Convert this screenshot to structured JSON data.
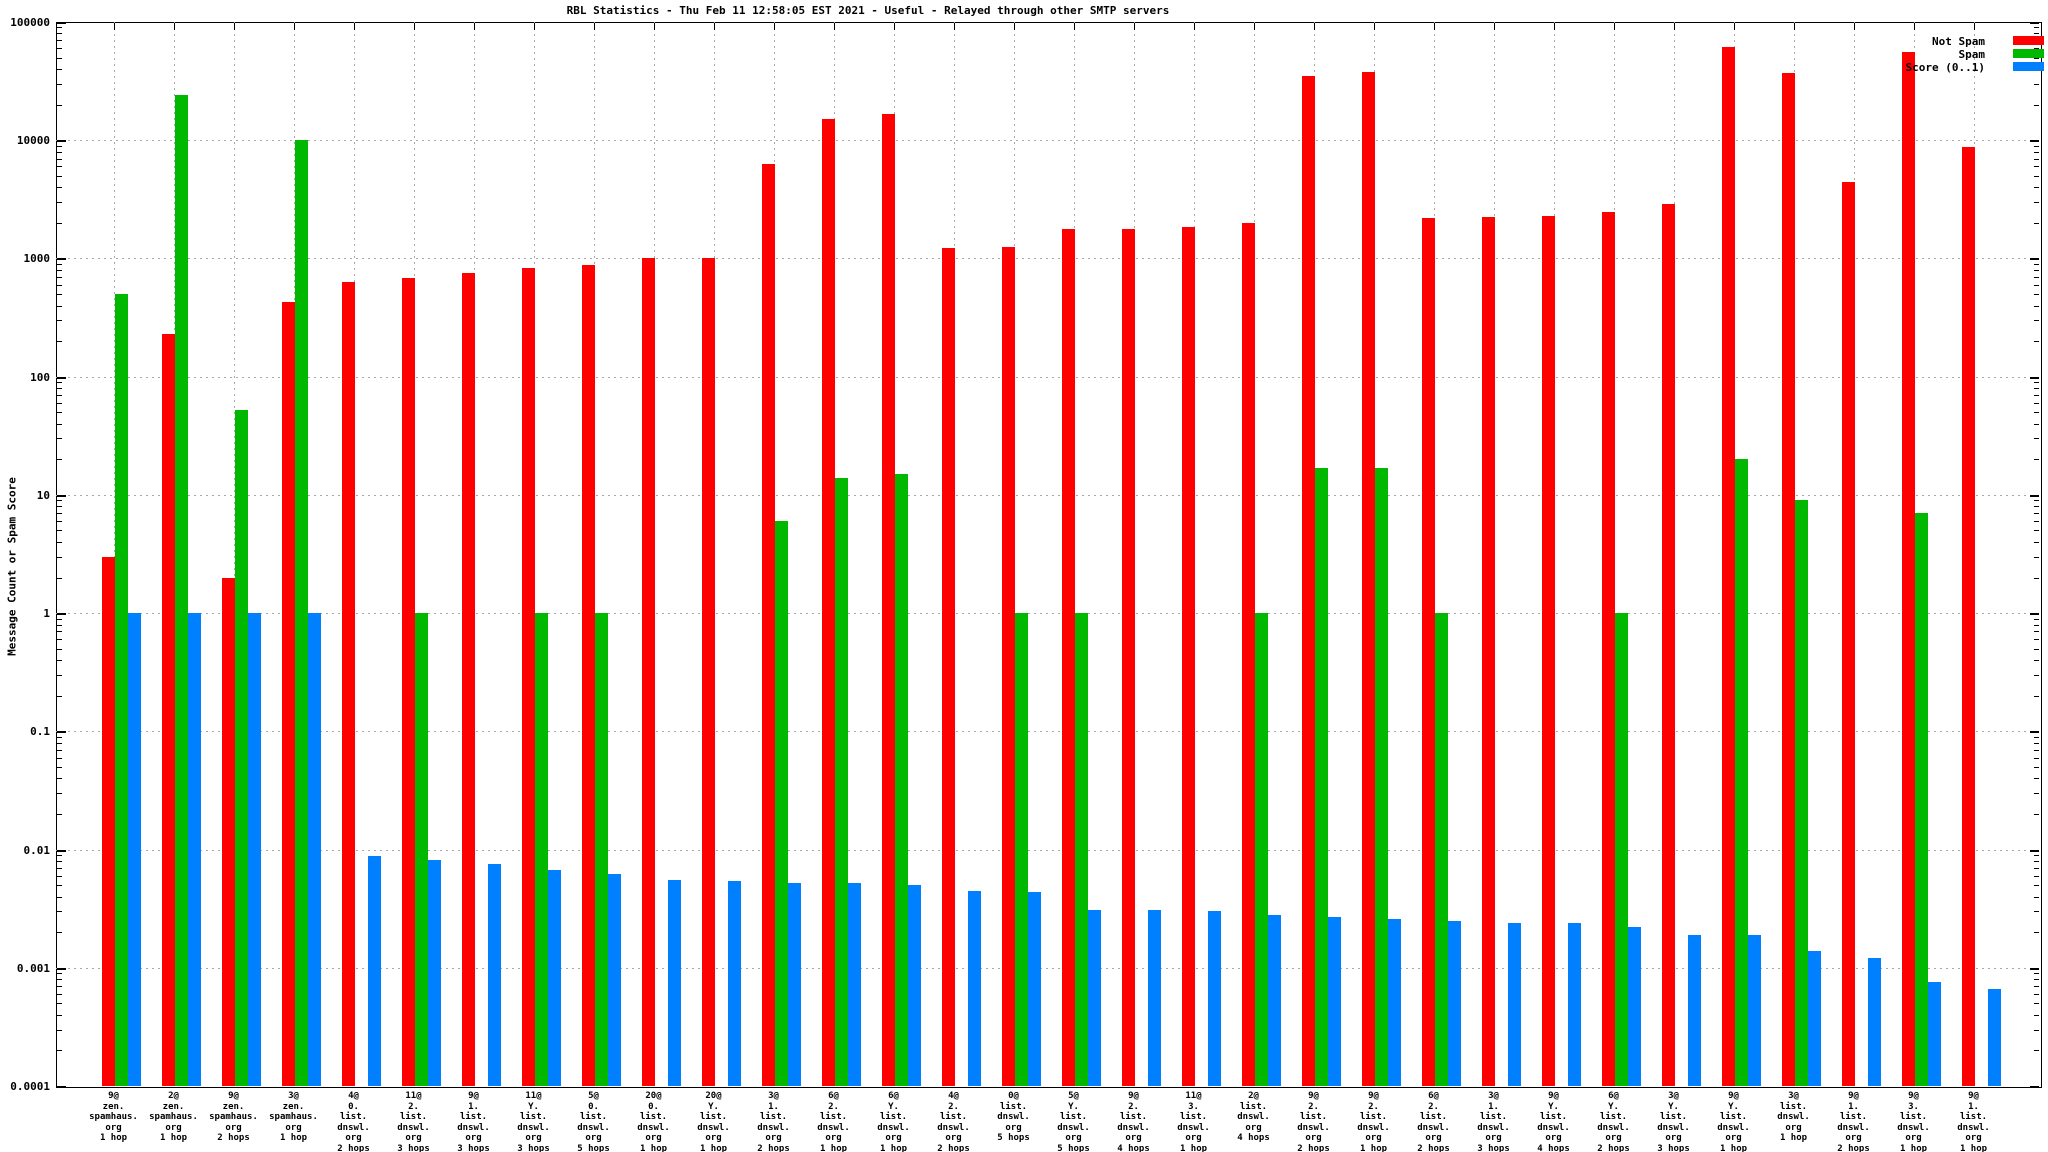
{
  "chart_data": {
    "type": "bar",
    "title": "RBL Statistics - Thu Feb 11 12:58:05 EST 2021 - Useful - Relayed through other SMTP servers",
    "ylabel": "Message Count or Spam Score",
    "y_scale": "log",
    "ylim": [
      0.0001,
      100000
    ],
    "ytick_labels": [
      "100000",
      "10000",
      "1000",
      "100",
      "10",
      "1",
      "0.1",
      "0.01",
      "0.001",
      "0.0001"
    ],
    "grid": true,
    "legend_position": "top-right-inside",
    "legend": [
      {
        "label": "Not Spam",
        "color": "#ff0000"
      },
      {
        "label": "Spam",
        "color": "#00b800"
      },
      {
        "label": "Score (0..1)",
        "color": "#0080ff"
      }
    ],
    "series": [
      {
        "name": "Not Spam",
        "values": [
          3,
          230,
          2,
          430,
          630,
          690,
          750,
          830,
          880,
          1000,
          1010,
          6300,
          15000,
          16700,
          1220,
          1260,
          1780,
          1790,
          1840,
          1990,
          35000,
          38000,
          2200,
          2250,
          2300,
          2450,
          2900,
          62000,
          37000,
          4400,
          56000,
          8700
        ]
      },
      {
        "name": "Spam",
        "values": [
          500,
          24000,
          52,
          10000,
          null,
          1,
          null,
          1,
          1,
          null,
          null,
          6,
          14,
          15,
          null,
          1,
          1,
          null,
          null,
          1,
          17,
          17,
          1,
          null,
          null,
          1,
          null,
          20,
          9,
          null,
          7,
          null
        ]
      },
      {
        "name": "Score (0..1)",
        "values": [
          1.0,
          1.0,
          1.0,
          1.0,
          0.0088,
          0.0081,
          0.0076,
          0.0067,
          0.0062,
          0.0055,
          0.0054,
          0.0052,
          0.0052,
          0.005,
          0.0045,
          0.0044,
          0.0031,
          0.0031,
          0.003,
          0.0028,
          0.0027,
          0.0026,
          0.0025,
          0.0024,
          0.0024,
          0.0022,
          0.0019,
          0.0019,
          0.0014,
          0.0012,
          0.00076,
          0.00066
        ]
      }
    ],
    "categories": [
      [
        "9@",
        "zen.",
        "spamhaus.",
        "org",
        "1 hop"
      ],
      [
        "2@",
        "zen.",
        "spamhaus.",
        "org",
        "1 hop"
      ],
      [
        "9@",
        "zen.",
        "spamhaus.",
        "org",
        "2 hops"
      ],
      [
        "3@",
        "zen.",
        "spamhaus.",
        "org",
        "1 hop"
      ],
      [
        "4@",
        "0.",
        "list.",
        "dnswl.",
        "org",
        "2 hops"
      ],
      [
        "11@",
        "2.",
        "list.",
        "dnswl.",
        "org",
        "3 hops"
      ],
      [
        "9@",
        "1.",
        "list.",
        "dnswl.",
        "org",
        "3 hops"
      ],
      [
        "11@",
        "Y.",
        "list.",
        "dnswl.",
        "org",
        "3 hops"
      ],
      [
        "5@",
        "0.",
        "list.",
        "dnswl.",
        "org",
        "5 hops"
      ],
      [
        "20@",
        "0.",
        "list.",
        "dnswl.",
        "org",
        "1 hop"
      ],
      [
        "20@",
        "Y.",
        "list.",
        "dnswl.",
        "org",
        "1 hop"
      ],
      [
        "3@",
        "1.",
        "list.",
        "dnswl.",
        "org",
        "2 hops"
      ],
      [
        "6@",
        "2.",
        "list.",
        "dnswl.",
        "org",
        "1 hop"
      ],
      [
        "6@",
        "Y.",
        "list.",
        "dnswl.",
        "org",
        "1 hop"
      ],
      [
        "4@",
        "2.",
        "list.",
        "dnswl.",
        "org",
        "2 hops"
      ],
      [
        "0@",
        "list.",
        "dnswl.",
        "org",
        "5 hops"
      ],
      [
        "5@",
        "Y.",
        "list.",
        "dnswl.",
        "org",
        "5 hops"
      ],
      [
        "9@",
        "2.",
        "list.",
        "dnswl.",
        "org",
        "4 hops"
      ],
      [
        "11@",
        "3.",
        "list.",
        "dnswl.",
        "org",
        "1 hop"
      ],
      [
        "2@",
        "list.",
        "dnswl.",
        "org",
        "4 hops"
      ],
      [
        "9@",
        "2.",
        "list.",
        "dnswl.",
        "org",
        "2 hops"
      ],
      [
        "9@",
        "2.",
        "list.",
        "dnswl.",
        "org",
        "1 hop"
      ],
      [
        "6@",
        "2.",
        "list.",
        "dnswl.",
        "org",
        "2 hops"
      ],
      [
        "3@",
        "1.",
        "list.",
        "dnswl.",
        "org",
        "3 hops"
      ],
      [
        "9@",
        "Y.",
        "list.",
        "dnswl.",
        "org",
        "4 hops"
      ],
      [
        "6@",
        "Y.",
        "list.",
        "dnswl.",
        "org",
        "2 hops"
      ],
      [
        "3@",
        "Y.",
        "list.",
        "dnswl.",
        "org",
        "3 hops"
      ],
      [
        "9@",
        "Y.",
        "list.",
        "dnswl.",
        "org",
        "1 hop"
      ],
      [
        "3@",
        "list.",
        "dnswl.",
        "org",
        "1 hop"
      ],
      [
        "9@",
        "1.",
        "list.",
        "dnswl.",
        "org",
        "2 hops"
      ],
      [
        "9@",
        "3.",
        "list.",
        "dnswl.",
        "org",
        "1 hop"
      ],
      [
        "9@",
        "1.",
        "list.",
        "dnswl.",
        "org",
        "1 hop"
      ]
    ],
    "colors": {
      "not_spam": "#ff0000",
      "spam": "#00b800",
      "score": "#0080ff",
      "grid": "#a8a8a8",
      "axis": "#000000",
      "background": "#ffffff"
    }
  }
}
